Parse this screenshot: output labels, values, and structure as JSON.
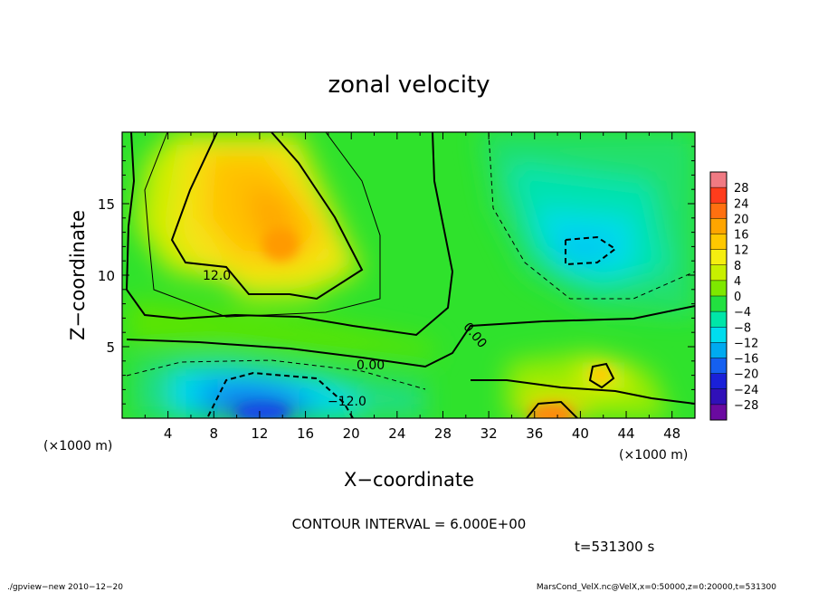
{
  "chart_data": {
    "type": "heatmap",
    "title": "zonal velocity",
    "xlabel": "X−coordinate",
    "ylabel": "Z−coordinate",
    "x_unit": "(×1000 m)",
    "y_unit": "(×1000 m)",
    "xlim": [
      0,
      50
    ],
    "ylim": [
      0,
      20
    ],
    "x_ticks": [
      "4",
      "8",
      "12",
      "16",
      "20",
      "24",
      "28",
      "32",
      "36",
      "40",
      "44",
      "48"
    ],
    "y_ticks": [
      "5",
      "10",
      "15"
    ],
    "contour_labels": [
      "12.0",
      "0.00",
      "0.00",
      "−12.0"
    ],
    "contour_interval_text": "CONTOUR INTERVAL = 6.000E+00",
    "time_text": "t=531300 s",
    "colorbar": {
      "levels": [
        "28",
        "24",
        "20",
        "16",
        "12",
        "8",
        "4",
        "0",
        "−4",
        "−8",
        "−12",
        "−16",
        "−20",
        "−24",
        "−28"
      ],
      "colors": [
        "#f07a83",
        "#ff3c1c",
        "#ff7010",
        "#ffa500",
        "#ffc800",
        "#f5ee10",
        "#c8f000",
        "#7ee800",
        "#22e040",
        "#00e6a8",
        "#00ddee",
        "#00aaf0",
        "#1560f0",
        "#1a20d8",
        "#3010b8",
        "#6a0aa0"
      ]
    },
    "fields": {
      "positive_max_upper_left": 14,
      "negative_min_upper_right": -12,
      "negative_min_lower_left": -16,
      "positive_max_lower_right": 16
    }
  },
  "footer": {
    "left": "./gpview−new   2010−12−20",
    "right": "MarsCond_VelX.nc@VelX,x=0:50000,z=0:20000,t=531300"
  }
}
